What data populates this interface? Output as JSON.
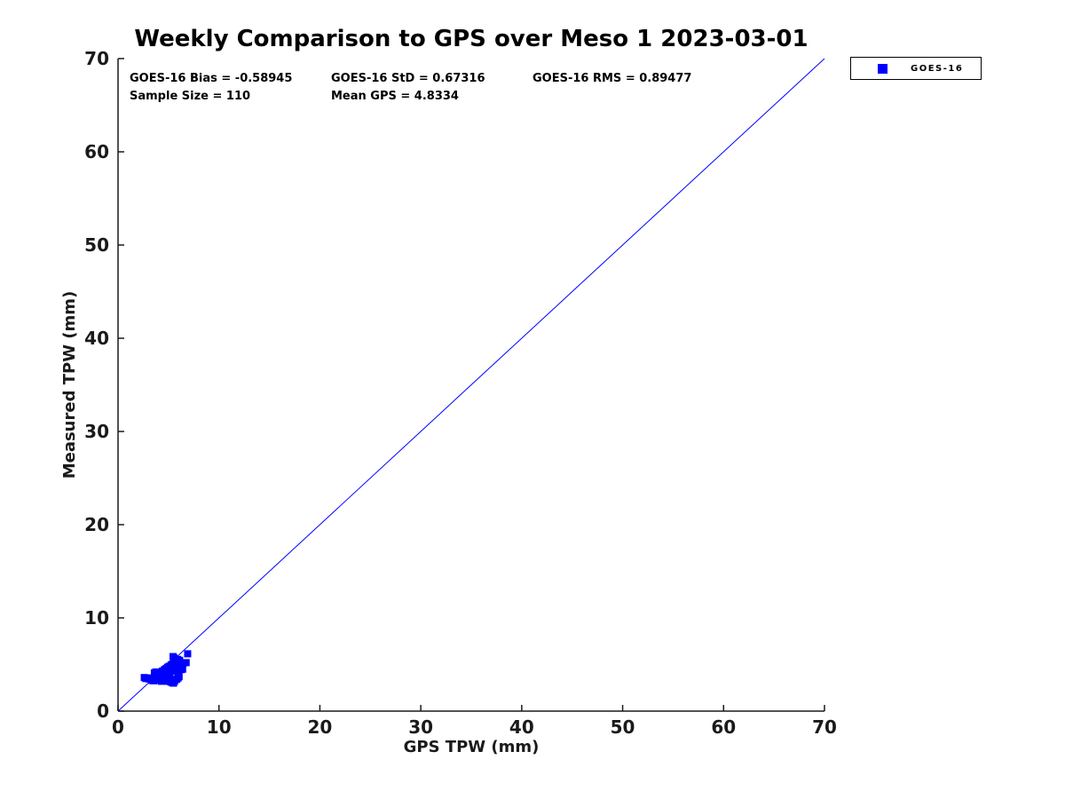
{
  "colors": {
    "accent_blue": "#0000ff",
    "axis": "#1a1a1a",
    "background": "#ffffff"
  },
  "chart_data": {
    "type": "scatter",
    "title": "Weekly Comparison to GPS over Meso 1 2023-03-01",
    "xlabel": "GPS TPW (mm)",
    "ylabel": "Measured TPW (mm)",
    "xlim": [
      0,
      70
    ],
    "ylim": [
      0,
      70
    ],
    "xticks": [
      0,
      10,
      20,
      30,
      40,
      50,
      60,
      70
    ],
    "yticks": [
      0,
      10,
      20,
      30,
      40,
      50,
      60,
      70
    ],
    "grid": false,
    "legend_position": "outside-top-right",
    "annotations": {
      "bias": "GOES-16 Bias = -0.58945",
      "std": "GOES-16 StD = 0.67316",
      "rms": "GOES-16 RMS = 0.89477",
      "sample_size": "Sample Size = 110",
      "mean_gps": "Mean GPS = 4.8334"
    },
    "reference_line": {
      "from": [
        0,
        0
      ],
      "to": [
        70,
        70
      ],
      "color": "#0000ff",
      "width": 1
    },
    "series": [
      {
        "name": "GOES-16",
        "marker": "filled-square",
        "marker_size_px": 8,
        "color": "#0000ff",
        "points": [
          [
            2.6,
            3.6
          ],
          [
            2.75,
            3.5
          ],
          [
            2.9,
            3.55
          ],
          [
            3.05,
            3.45
          ],
          [
            3.2,
            3.55
          ],
          [
            3.35,
            3.45
          ],
          [
            3.5,
            3.5
          ],
          [
            3.65,
            3.4
          ],
          [
            3.3,
            3.3
          ],
          [
            3.5,
            3.25
          ],
          [
            3.7,
            3.3
          ],
          [
            3.6,
            4.1
          ],
          [
            3.75,
            4.2
          ],
          [
            3.9,
            4.05
          ],
          [
            3.8,
            3.85
          ],
          [
            3.95,
            3.7
          ],
          [
            4.1,
            3.3
          ],
          [
            4.3,
            3.2
          ],
          [
            4.5,
            3.3
          ],
          [
            4.7,
            3.25
          ],
          [
            4.9,
            3.2
          ],
          [
            4.2,
            3.5
          ],
          [
            4.4,
            3.45
          ],
          [
            4.6,
            3.5
          ],
          [
            4.85,
            3.45
          ],
          [
            5.05,
            3.3
          ],
          [
            5.2,
            3.15
          ],
          [
            5.35,
            3.05
          ],
          [
            5.5,
            3.0
          ],
          [
            5.6,
            3.2
          ],
          [
            5.45,
            3.3
          ],
          [
            5.3,
            3.45
          ],
          [
            5.1,
            3.5
          ],
          [
            5.65,
            3.45
          ],
          [
            5.8,
            3.4
          ],
          [
            5.95,
            3.55
          ],
          [
            6.05,
            3.7
          ],
          [
            4.0,
            3.9
          ],
          [
            4.15,
            4.0
          ],
          [
            4.3,
            3.85
          ],
          [
            4.25,
            4.15
          ],
          [
            4.45,
            4.05
          ],
          [
            4.4,
            4.3
          ],
          [
            4.55,
            4.2
          ],
          [
            4.6,
            4.45
          ],
          [
            4.7,
            4.3
          ],
          [
            4.75,
            4.55
          ],
          [
            4.65,
            4.05
          ],
          [
            4.8,
            4.2
          ],
          [
            4.85,
            4.45
          ],
          [
            4.9,
            4.7
          ],
          [
            4.95,
            4.3
          ],
          [
            5.0,
            4.55
          ],
          [
            5.05,
            4.8
          ],
          [
            5.0,
            4.05
          ],
          [
            5.1,
            4.2
          ],
          [
            5.15,
            4.45
          ],
          [
            5.2,
            4.7
          ],
          [
            5.25,
            4.95
          ],
          [
            5.2,
            4.3
          ],
          [
            5.3,
            4.55
          ],
          [
            5.35,
            4.8
          ],
          [
            5.4,
            5.05
          ],
          [
            5.45,
            4.45
          ],
          [
            5.5,
            4.7
          ],
          [
            5.55,
            4.95
          ],
          [
            5.6,
            5.2
          ],
          [
            5.65,
            5.45
          ],
          [
            5.55,
            5.7
          ],
          [
            5.45,
            5.85
          ],
          [
            5.6,
            4.3
          ],
          [
            5.7,
            4.55
          ],
          [
            5.75,
            4.8
          ],
          [
            5.8,
            5.05
          ],
          [
            5.85,
            5.3
          ],
          [
            5.9,
            5.55
          ],
          [
            5.75,
            4.3
          ],
          [
            5.9,
            4.45
          ],
          [
            5.95,
            4.7
          ],
          [
            6.0,
            4.95
          ],
          [
            6.05,
            5.2
          ],
          [
            6.1,
            5.45
          ],
          [
            6.0,
            4.3
          ],
          [
            6.1,
            4.55
          ],
          [
            6.15,
            4.8
          ],
          [
            6.2,
            5.05
          ],
          [
            6.25,
            4.45
          ],
          [
            6.3,
            4.7
          ],
          [
            6.35,
            4.95
          ],
          [
            6.4,
            4.5
          ],
          [
            6.45,
            5.15
          ],
          [
            6.75,
            5.2
          ],
          [
            6.9,
            6.15
          ]
        ]
      }
    ]
  }
}
